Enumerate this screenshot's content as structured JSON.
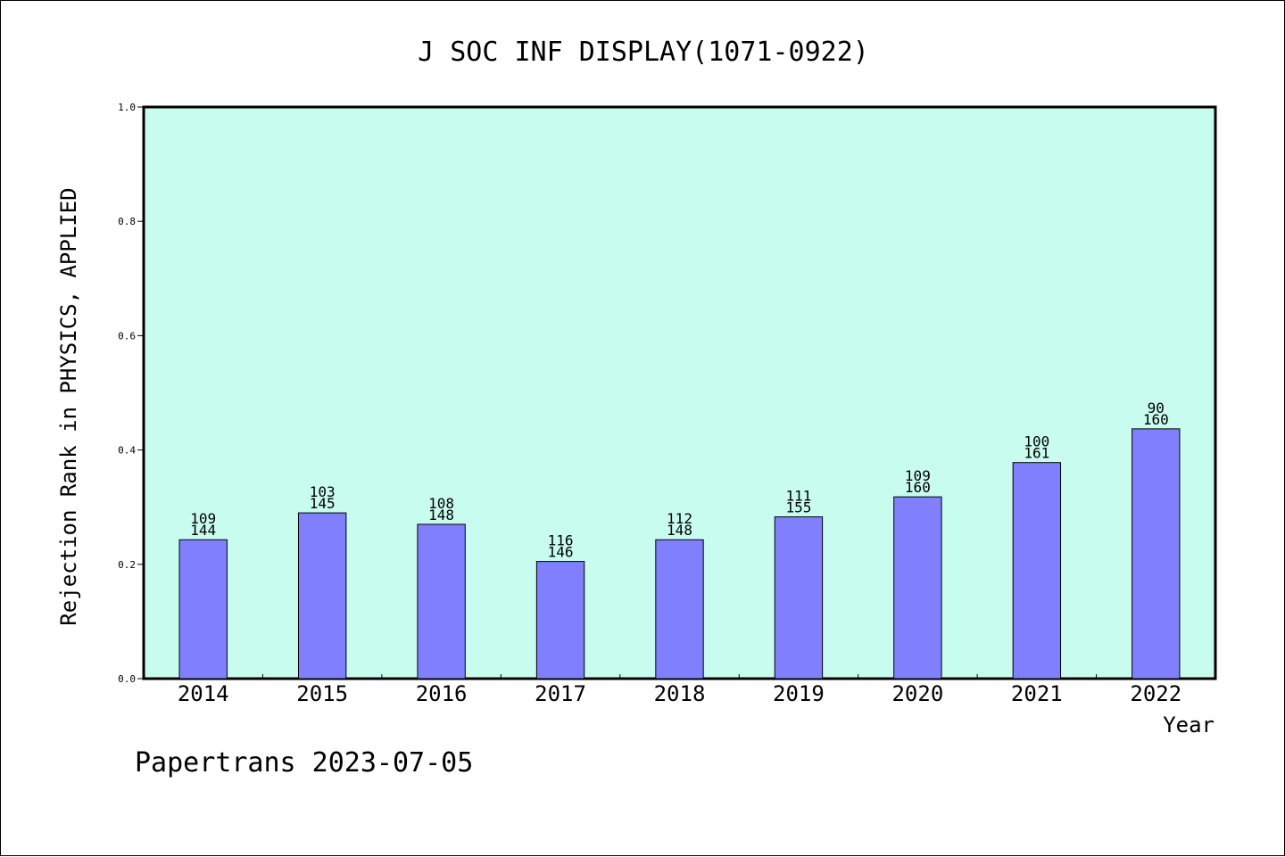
{
  "chart_data": {
    "type": "bar",
    "title": "J SOC INF DISPLAY(1071-0922)",
    "xlabel": "Year",
    "ylabel": "Rejection Rank in PHYSICS, APPLIED",
    "ylim": [
      0,
      1.0
    ],
    "yticks": [
      "0.0",
      "0.2",
      "0.4",
      "0.6",
      "0.8",
      "1.0"
    ],
    "categories": [
      "2014",
      "2015",
      "2016",
      "2017",
      "2018",
      "2019",
      "2020",
      "2021",
      "2022"
    ],
    "values": [
      0.243,
      0.29,
      0.27,
      0.205,
      0.243,
      0.283,
      0.318,
      0.378,
      0.437
    ],
    "labels_top": [
      "109",
      "103",
      "108",
      "116",
      "112",
      "111",
      "109",
      "100",
      "90"
    ],
    "labels_bottom": [
      "144",
      "145",
      "148",
      "146",
      "148",
      "155",
      "160",
      "161",
      "160"
    ],
    "grid": false,
    "colors": {
      "plot_bg": "#c8fcee",
      "bar": "#8080ff",
      "axis": "#000000"
    }
  },
  "footer": {
    "text": "Papertrans 2023-07-05"
  }
}
